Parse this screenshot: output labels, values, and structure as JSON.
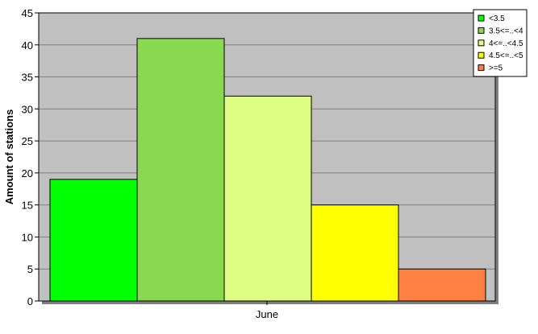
{
  "chart_data": {
    "type": "bar",
    "categories": [
      "June"
    ],
    "series": [
      {
        "name": "<3.5",
        "values": [
          19
        ],
        "color": "#00ff00"
      },
      {
        "name": "3.5<=..<4",
        "values": [
          41
        ],
        "color": "#88d850"
      },
      {
        "name": "4<=..<4.5",
        "values": [
          32
        ],
        "color": "#ddfc82"
      },
      {
        "name": "4.5<=..<5",
        "values": [
          15
        ],
        "color": "#ffff00"
      },
      {
        "name": ">=5",
        "values": [
          5
        ],
        "color": "#ff8040"
      }
    ],
    "ylabel": "Amount of stations",
    "xlabel": "",
    "ylim": [
      0,
      45
    ],
    "yticks": [
      "0",
      "5",
      "10",
      "15",
      "20",
      "25",
      "30",
      "35",
      "40",
      "45"
    ],
    "grid": true,
    "legend": "top-right",
    "plot_background": "#c0c0c0"
  }
}
